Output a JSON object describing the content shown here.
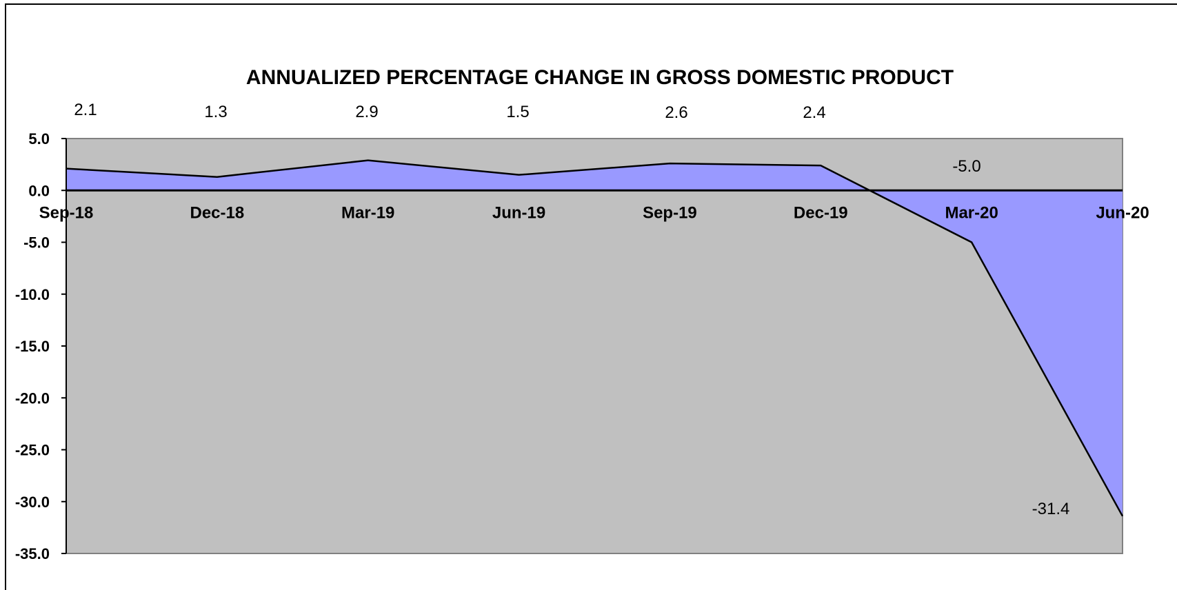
{
  "chart_data": {
    "type": "area",
    "title": "ANNUALIZED PERCENTAGE CHANGE IN GROSS DOMESTIC PRODUCT",
    "xlabel": "",
    "ylabel": "",
    "categories": [
      "Sep-18",
      "Dec-18",
      "Mar-19",
      "Jun-19",
      "Sep-19",
      "Dec-19",
      "Mar-20",
      "Jun-20"
    ],
    "values": [
      2.1,
      1.3,
      2.9,
      1.5,
      2.6,
      2.4,
      -5.0,
      -31.4
    ],
    "data_labels": [
      "2.1",
      "1.3",
      "2.9",
      "1.5",
      "2.6",
      "2.4",
      "-5.0",
      "-31.4"
    ],
    "ylim": [
      -35,
      5
    ],
    "yticks": [
      5,
      0,
      -5,
      -10,
      -15,
      -20,
      -25,
      -30,
      -35
    ],
    "ytick_labels": [
      "5.0",
      "0.0",
      "-5.0",
      "-10.0",
      "-15.0",
      "-20.0",
      "-25.0",
      "-30.0",
      "-35.0"
    ],
    "grid": false,
    "legend": "none",
    "colors": {
      "area_fill": "#9999ff",
      "plot_background": "#c0c0c0",
      "line": "#000000"
    }
  }
}
